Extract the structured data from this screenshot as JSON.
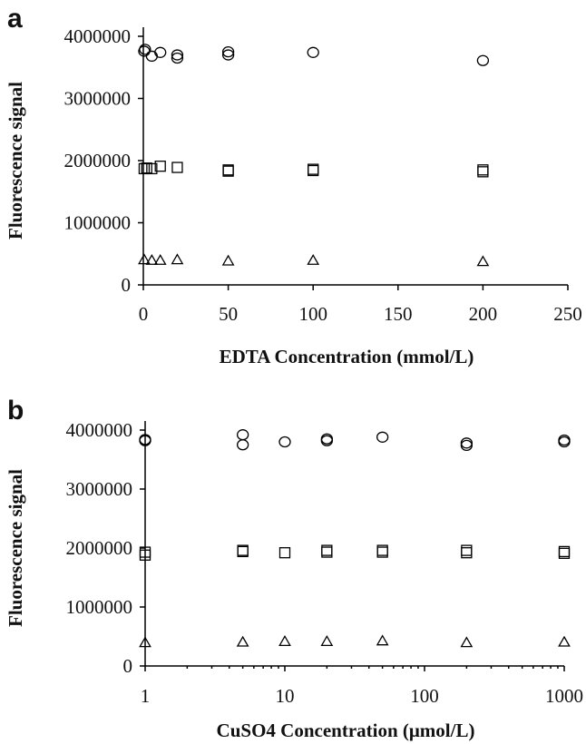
{
  "chart_data": [
    {
      "panel": "a",
      "type": "scatter",
      "title": "",
      "xlabel": "EDTA Concentration (mmol/L)",
      "ylabel": "Fluorescence signal",
      "xscale": "linear",
      "xlim": [
        0,
        250
      ],
      "ylim": [
        0,
        4000000
      ],
      "xticks": [
        0,
        50,
        100,
        150,
        200,
        250
      ],
      "xtick_labels": [
        "0",
        "50",
        "100",
        "150",
        "200",
        "250"
      ],
      "yticks": [
        0,
        1000000,
        2000000,
        3000000,
        4000000
      ],
      "ytick_labels": [
        "0",
        "1000000",
        "2000000",
        "3000000",
        "4000000"
      ],
      "grid": false,
      "series": [
        {
          "marker": "circle",
          "color": "#000000",
          "points": [
            [
              0.5,
              3760000
            ],
            [
              1,
              3790000
            ],
            [
              5,
              3680000
            ],
            [
              10,
              3740000
            ],
            [
              20,
              3650000
            ],
            [
              20,
              3700000
            ],
            [
              50,
              3700000
            ],
            [
              50,
              3750000
            ],
            [
              100,
              3740000
            ],
            [
              200,
              3610000
            ]
          ]
        },
        {
          "marker": "square",
          "color": "#000000",
          "points": [
            [
              0.5,
              1870000
            ],
            [
              2,
              1880000
            ],
            [
              5,
              1870000
            ],
            [
              10,
              1910000
            ],
            [
              20,
              1890000
            ],
            [
              50,
              1830000
            ],
            [
              50,
              1850000
            ],
            [
              100,
              1840000
            ],
            [
              100,
              1860000
            ],
            [
              200,
              1820000
            ],
            [
              200,
              1850000
            ]
          ]
        },
        {
          "marker": "triangle",
          "color": "#000000",
          "points": [
            [
              0.5,
              400000
            ],
            [
              5,
              390000
            ],
            [
              10,
              390000
            ],
            [
              20,
              400000
            ],
            [
              50,
              380000
            ],
            [
              100,
              390000
            ],
            [
              200,
              370000
            ]
          ]
        }
      ]
    },
    {
      "panel": "b",
      "type": "scatter",
      "title": "",
      "xlabel": "CuSO4 Concentration (μmol/L)",
      "ylabel": "Fluorescence signal",
      "xscale": "log",
      "xlim": [
        1,
        1000
      ],
      "ylim": [
        0,
        4000000
      ],
      "xticks": [
        1,
        10,
        100,
        1000
      ],
      "xtick_labels": [
        "1",
        "10",
        "100",
        "1000"
      ],
      "yticks": [
        0,
        1000000,
        2000000,
        3000000,
        4000000
      ],
      "ytick_labels": [
        "0",
        "1000000",
        "2000000",
        "3000000",
        "4000000"
      ],
      "grid": false,
      "series": [
        {
          "marker": "circle",
          "color": "#000000",
          "points": [
            [
              1,
              3820000
            ],
            [
              1,
              3840000
            ],
            [
              5,
              3920000
            ],
            [
              5,
              3750000
            ],
            [
              10,
              3800000
            ],
            [
              20,
              3820000
            ],
            [
              20,
              3850000
            ],
            [
              50,
              3880000
            ],
            [
              200,
              3740000
            ],
            [
              200,
              3780000
            ],
            [
              1000,
              3800000
            ],
            [
              1000,
              3830000
            ]
          ]
        },
        {
          "marker": "square",
          "color": "#000000",
          "points": [
            [
              1,
              1880000
            ],
            [
              1,
              1930000
            ],
            [
              5,
              1940000
            ],
            [
              5,
              1960000
            ],
            [
              10,
              1920000
            ],
            [
              20,
              1930000
            ],
            [
              20,
              1960000
            ],
            [
              50,
              1930000
            ],
            [
              50,
              1960000
            ],
            [
              200,
              1920000
            ],
            [
              200,
              1960000
            ],
            [
              1000,
              1910000
            ],
            [
              1000,
              1940000
            ]
          ]
        },
        {
          "marker": "triangle",
          "color": "#000000",
          "points": [
            [
              1,
              390000
            ],
            [
              5,
              400000
            ],
            [
              10,
              410000
            ],
            [
              20,
              410000
            ],
            [
              50,
              420000
            ],
            [
              200,
              390000
            ],
            [
              1000,
              400000
            ]
          ]
        }
      ]
    }
  ]
}
